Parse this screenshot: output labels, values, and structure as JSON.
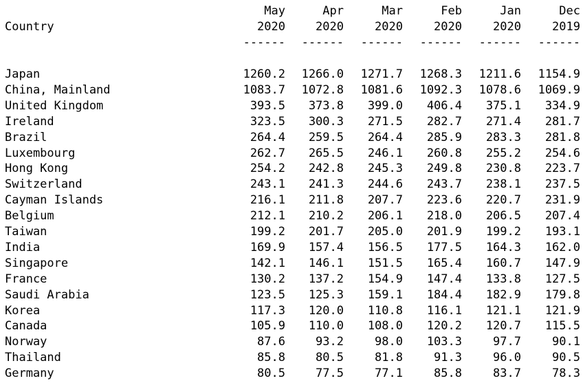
{
  "table": {
    "country_header": "Country",
    "columns": [
      {
        "month": "May",
        "year": "2020",
        "rule": "------"
      },
      {
        "month": "Apr",
        "year": "2020",
        "rule": "------"
      },
      {
        "month": "Mar",
        "year": "2020",
        "rule": "------"
      },
      {
        "month": "Feb",
        "year": "2020",
        "rule": "------"
      },
      {
        "month": "Jan",
        "year": "2020",
        "rule": "------"
      },
      {
        "month": "Dec",
        "year": "2019",
        "rule": "------"
      }
    ],
    "rows": [
      {
        "country": "Japan",
        "values": [
          "1260.2",
          "1266.0",
          "1271.7",
          "1268.3",
          "1211.6",
          "1154.9"
        ]
      },
      {
        "country": "China, Mainland",
        "values": [
          "1083.7",
          "1072.8",
          "1081.6",
          "1092.3",
          "1078.6",
          "1069.9"
        ]
      },
      {
        "country": "United Kingdom",
        "values": [
          "393.5",
          "373.8",
          "399.0",
          "406.4",
          "375.1",
          "334.9"
        ]
      },
      {
        "country": "Ireland",
        "values": [
          "323.5",
          "300.3",
          "271.5",
          "282.7",
          "271.4",
          "281.7"
        ]
      },
      {
        "country": "Brazil",
        "values": [
          "264.4",
          "259.5",
          "264.4",
          "285.9",
          "283.3",
          "281.8"
        ]
      },
      {
        "country": "Luxembourg",
        "values": [
          "262.7",
          "265.5",
          "246.1",
          "260.8",
          "255.2",
          "254.6"
        ]
      },
      {
        "country": "Hong Kong",
        "values": [
          "254.2",
          "242.8",
          "245.3",
          "249.8",
          "230.8",
          "223.7"
        ]
      },
      {
        "country": "Switzerland",
        "values": [
          "243.1",
          "241.3",
          "244.6",
          "243.7",
          "238.1",
          "237.5"
        ]
      },
      {
        "country": "Cayman Islands",
        "values": [
          "216.1",
          "211.8",
          "207.7",
          "223.6",
          "220.7",
          "231.9"
        ]
      },
      {
        "country": "Belgium",
        "values": [
          "212.1",
          "210.2",
          "206.1",
          "218.0",
          "206.5",
          "207.4"
        ]
      },
      {
        "country": "Taiwan",
        "values": [
          "199.2",
          "201.7",
          "205.0",
          "201.9",
          "199.2",
          "193.1"
        ]
      },
      {
        "country": "India",
        "values": [
          "169.9",
          "157.4",
          "156.5",
          "177.5",
          "164.3",
          "162.0"
        ]
      },
      {
        "country": "Singapore",
        "values": [
          "142.1",
          "146.1",
          "151.5",
          "165.4",
          "160.7",
          "147.9"
        ]
      },
      {
        "country": "France",
        "values": [
          "130.2",
          "137.2",
          "154.9",
          "147.4",
          "133.8",
          "127.5"
        ]
      },
      {
        "country": "Saudi Arabia",
        "values": [
          "123.5",
          "125.3",
          "159.1",
          "184.4",
          "182.9",
          "179.8"
        ]
      },
      {
        "country": "Korea",
        "values": [
          "117.3",
          "120.0",
          "110.8",
          "116.1",
          "121.1",
          "121.9"
        ]
      },
      {
        "country": "Canada",
        "values": [
          "105.9",
          "110.0",
          "108.0",
          "120.2",
          "120.7",
          "115.5"
        ]
      },
      {
        "country": "Norway",
        "values": [
          "87.6",
          "93.2",
          "98.0",
          "103.3",
          "97.7",
          "90.1"
        ]
      },
      {
        "country": "Thailand",
        "values": [
          "85.8",
          "80.5",
          "81.8",
          "91.3",
          "96.0",
          "90.5"
        ]
      },
      {
        "country": "Germany",
        "values": [
          "80.5",
          "77.5",
          "77.1",
          "85.8",
          "83.7",
          "78.3"
        ]
      }
    ]
  }
}
